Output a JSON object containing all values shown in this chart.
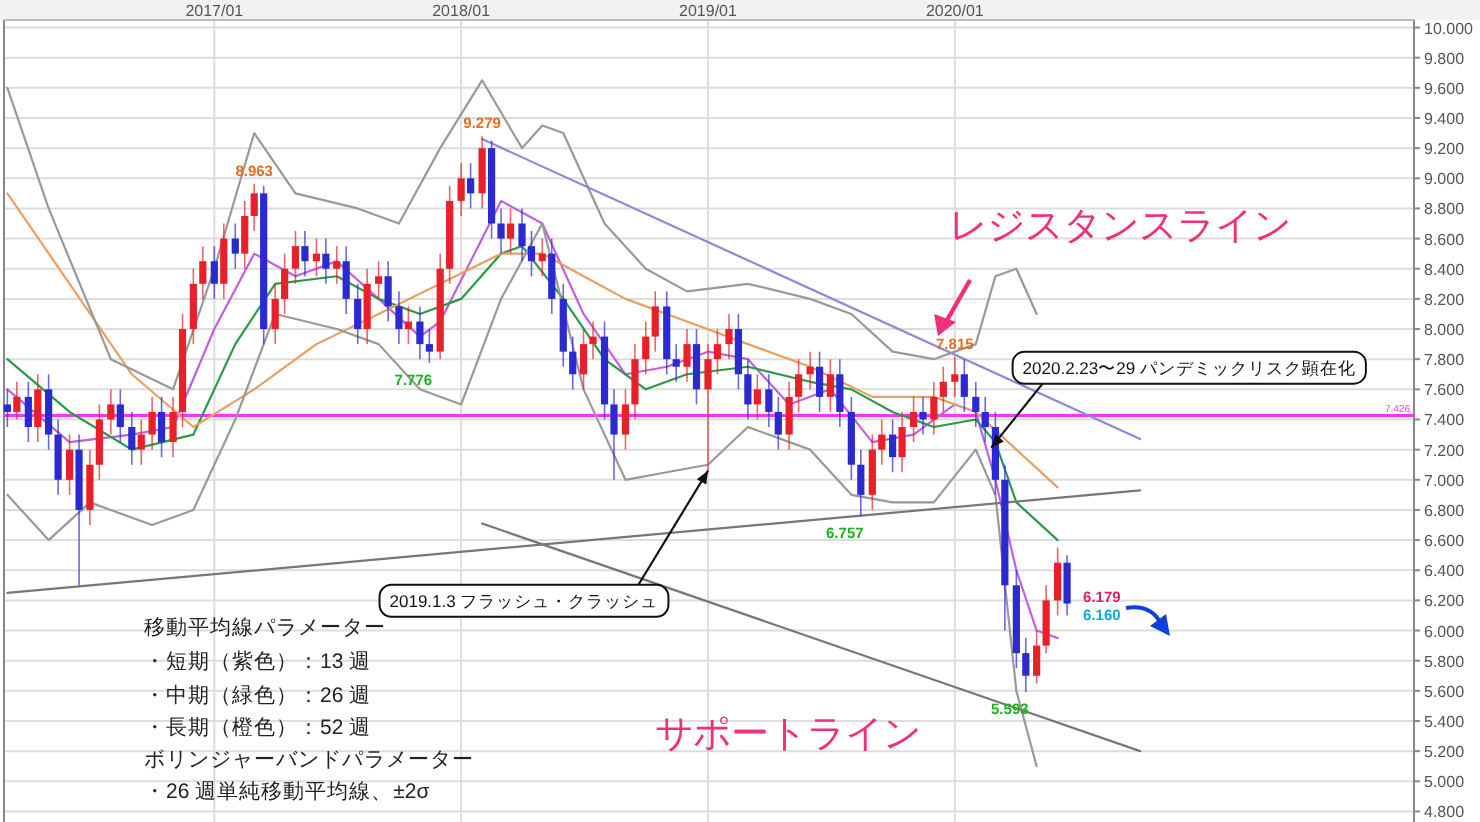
{
  "chart_data": {
    "type": "candlestick",
    "x": [
      "2016-03-01",
      "2016-03-15",
      "2016-04-01",
      "2016-04-15",
      "2016-05-01",
      "2016-05-15",
      "2016-06-01",
      "2016-06-15",
      "2016-07-01",
      "2016-07-15",
      "2016-08-01",
      "2016-08-15",
      "2016-09-01",
      "2016-09-15",
      "2016-10-01",
      "2016-10-15",
      "2016-11-01",
      "2016-11-15",
      "2016-12-01",
      "2016-12-15",
      "2017-01-01",
      "2017-01-15",
      "2017-02-01",
      "2017-02-15",
      "2017-03-01",
      "2017-03-15",
      "2017-04-01",
      "2017-04-15",
      "2017-05-01",
      "2017-05-15",
      "2017-06-01",
      "2017-06-15",
      "2017-07-01",
      "2017-07-15",
      "2017-08-01",
      "2017-08-15",
      "2017-09-01",
      "2017-09-15",
      "2017-10-01",
      "2017-10-15",
      "2017-11-01",
      "2017-11-15",
      "2017-12-01",
      "2017-12-15",
      "2018-01-01",
      "2018-01-15",
      "2018-02-01",
      "2018-02-15",
      "2018-03-01",
      "2018-03-15",
      "2018-04-01",
      "2018-04-15",
      "2018-05-01",
      "2018-05-15",
      "2018-06-01",
      "2018-06-15",
      "2018-07-01",
      "2018-07-15",
      "2018-08-01",
      "2018-08-15",
      "2018-09-01",
      "2018-09-15",
      "2018-10-01",
      "2018-10-15",
      "2018-11-01",
      "2018-11-15",
      "2018-12-01",
      "2018-12-15",
      "2019-01-01",
      "2019-01-15",
      "2019-02-01",
      "2019-02-15",
      "2019-03-01",
      "2019-03-15",
      "2019-04-01",
      "2019-04-15",
      "2019-05-01",
      "2019-05-15",
      "2019-06-01",
      "2019-06-15",
      "2019-07-01",
      "2019-07-15",
      "2019-08-01",
      "2019-08-15",
      "2019-09-01",
      "2019-09-15",
      "2019-10-01",
      "2019-10-15",
      "2019-11-01",
      "2019-11-15",
      "2019-12-01",
      "2019-12-15",
      "2020-01-01",
      "2020-01-15",
      "2020-02-01",
      "2020-02-15",
      "2020-03-01",
      "2020-03-15",
      "2020-04-01",
      "2020-04-15",
      "2020-05-01",
      "2020-05-15",
      "2020-06-01",
      "2020-06-15"
    ],
    "ohlc": [
      [
        7.5,
        7.6,
        7.35,
        7.45
      ],
      [
        7.45,
        7.65,
        7.4,
        7.55
      ],
      [
        7.55,
        7.65,
        7.25,
        7.35
      ],
      [
        7.35,
        7.7,
        7.25,
        7.6
      ],
      [
        7.6,
        7.7,
        7.2,
        7.3
      ],
      [
        7.3,
        7.4,
        6.9,
        7.0
      ],
      [
        7.0,
        7.3,
        6.9,
        7.2
      ],
      [
        7.2,
        7.3,
        6.3,
        6.8
      ],
      [
        6.8,
        7.2,
        6.7,
        7.1
      ],
      [
        7.1,
        7.5,
        7.0,
        7.4
      ],
      [
        7.4,
        7.6,
        7.3,
        7.5
      ],
      [
        7.5,
        7.6,
        7.25,
        7.35
      ],
      [
        7.35,
        7.45,
        7.1,
        7.2
      ],
      [
        7.2,
        7.4,
        7.1,
        7.3
      ],
      [
        7.3,
        7.55,
        7.2,
        7.45
      ],
      [
        7.45,
        7.55,
        7.15,
        7.25
      ],
      [
        7.25,
        7.55,
        7.15,
        7.45
      ],
      [
        7.45,
        8.1,
        7.35,
        8.0
      ],
      [
        8.0,
        8.4,
        7.9,
        8.3
      ],
      [
        8.3,
        8.55,
        8.2,
        8.45
      ],
      [
        8.45,
        8.55,
        8.2,
        8.3
      ],
      [
        8.3,
        8.7,
        8.2,
        8.6
      ],
      [
        8.6,
        8.7,
        8.4,
        8.5
      ],
      [
        8.5,
        8.85,
        8.4,
        8.75
      ],
      [
        8.75,
        8.963,
        8.65,
        8.9
      ],
      [
        8.9,
        8.95,
        7.9,
        8.0
      ],
      [
        8.0,
        8.3,
        7.9,
        8.2
      ],
      [
        8.2,
        8.5,
        8.1,
        8.4
      ],
      [
        8.4,
        8.65,
        8.3,
        8.55
      ],
      [
        8.55,
        8.65,
        8.35,
        8.45
      ],
      [
        8.45,
        8.6,
        8.35,
        8.5
      ],
      [
        8.5,
        8.6,
        8.3,
        8.4
      ],
      [
        8.4,
        8.55,
        8.3,
        8.45
      ],
      [
        8.45,
        8.55,
        8.1,
        8.2
      ],
      [
        8.2,
        8.3,
        7.9,
        8.0
      ],
      [
        8.0,
        8.4,
        7.9,
        8.3
      ],
      [
        8.3,
        8.45,
        8.2,
        8.35
      ],
      [
        8.35,
        8.45,
        8.05,
        8.15
      ],
      [
        8.15,
        8.25,
        7.9,
        8.0
      ],
      [
        8.0,
        8.15,
        7.9,
        8.05
      ],
      [
        8.05,
        8.15,
        7.8,
        7.9
      ],
      [
        7.9,
        8.0,
        7.776,
        7.85
      ],
      [
        7.85,
        8.5,
        7.8,
        8.4
      ],
      [
        8.4,
        8.95,
        8.3,
        8.85
      ],
      [
        8.85,
        9.1,
        8.75,
        9.0
      ],
      [
        9.0,
        9.1,
        8.8,
        8.9
      ],
      [
        8.9,
        9.279,
        8.8,
        9.2
      ],
      [
        9.2,
        9.25,
        8.6,
        8.7
      ],
      [
        8.7,
        8.8,
        8.5,
        8.6
      ],
      [
        8.6,
        8.8,
        8.5,
        8.7
      ],
      [
        8.7,
        8.8,
        8.45,
        8.55
      ],
      [
        8.55,
        8.65,
        8.35,
        8.45
      ],
      [
        8.45,
        8.6,
        8.35,
        8.5
      ],
      [
        8.5,
        8.6,
        8.1,
        8.2
      ],
      [
        8.2,
        8.3,
        7.75,
        7.85
      ],
      [
        7.85,
        7.95,
        7.6,
        7.7
      ],
      [
        7.7,
        8.0,
        7.6,
        7.9
      ],
      [
        7.9,
        8.05,
        7.8,
        7.95
      ],
      [
        7.95,
        8.05,
        7.4,
        7.5
      ],
      [
        7.5,
        7.6,
        7.0,
        7.3
      ],
      [
        7.3,
        7.6,
        7.2,
        7.5
      ],
      [
        7.5,
        7.9,
        7.4,
        7.8
      ],
      [
        7.8,
        8.05,
        7.7,
        7.95
      ],
      [
        7.95,
        8.25,
        7.85,
        8.15
      ],
      [
        8.15,
        8.25,
        7.7,
        7.8
      ],
      [
        7.8,
        7.9,
        7.65,
        7.75
      ],
      [
        7.75,
        8.0,
        7.65,
        7.9
      ],
      [
        7.9,
        8.0,
        7.5,
        7.6
      ],
      [
        7.6,
        7.9,
        7.05,
        7.8
      ],
      [
        7.8,
        8.0,
        7.7,
        7.9
      ],
      [
        7.9,
        8.1,
        7.8,
        8.0
      ],
      [
        8.0,
        8.1,
        7.6,
        7.7
      ],
      [
        7.7,
        7.8,
        7.4,
        7.5
      ],
      [
        7.5,
        7.7,
        7.4,
        7.6
      ],
      [
        7.6,
        7.7,
        7.35,
        7.45
      ],
      [
        7.45,
        7.55,
        7.2,
        7.3
      ],
      [
        7.3,
        7.65,
        7.2,
        7.55
      ],
      [
        7.55,
        7.8,
        7.45,
        7.7
      ],
      [
        7.7,
        7.85,
        7.6,
        7.75
      ],
      [
        7.75,
        7.85,
        7.45,
        7.55
      ],
      [
        7.55,
        7.8,
        7.45,
        7.7
      ],
      [
        7.7,
        7.8,
        7.35,
        7.45
      ],
      [
        7.45,
        7.55,
        7.0,
        7.1
      ],
      [
        7.1,
        7.2,
        6.757,
        6.9
      ],
      [
        6.9,
        7.3,
        6.8,
        7.2
      ],
      [
        7.2,
        7.4,
        7.1,
        7.3
      ],
      [
        7.3,
        7.4,
        7.05,
        7.15
      ],
      [
        7.15,
        7.45,
        7.05,
        7.35
      ],
      [
        7.35,
        7.55,
        7.25,
        7.45
      ],
      [
        7.45,
        7.55,
        7.3,
        7.4
      ],
      [
        7.4,
        7.65,
        7.3,
        7.55
      ],
      [
        7.55,
        7.75,
        7.45,
        7.65
      ],
      [
        7.65,
        7.815,
        7.55,
        7.7
      ],
      [
        7.7,
        7.8,
        7.45,
        7.55
      ],
      [
        7.55,
        7.65,
        7.35,
        7.45
      ],
      [
        7.45,
        7.55,
        7.25,
        7.35
      ],
      [
        7.35,
        7.45,
        6.9,
        7.0
      ],
      [
        7.0,
        7.1,
        6.0,
        6.3
      ],
      [
        6.3,
        6.4,
        5.75,
        5.85
      ],
      [
        5.85,
        5.95,
        5.593,
        5.7
      ],
      [
        5.7,
        6.0,
        5.65,
        5.9
      ],
      [
        5.9,
        6.3,
        5.85,
        6.2
      ],
      [
        6.2,
        6.55,
        6.1,
        6.45
      ],
      [
        6.45,
        6.5,
        6.1,
        6.179
      ]
    ],
    "colors": [
      "#2a2ad0",
      "#e8202a",
      "#2a2ad0",
      "#e8202a",
      "#2a2ad0",
      "#2a2ad0",
      "#e8202a",
      "#2a2ad0",
      "#e8202a",
      "#e8202a",
      "#e8202a",
      "#2a2ad0",
      "#2a2ad0",
      "#e8202a",
      "#e8202a",
      "#2a2ad0",
      "#e8202a",
      "#e8202a",
      "#e8202a",
      "#e8202a",
      "#2a2ad0",
      "#e8202a",
      "#2a2ad0",
      "#e8202a",
      "#e8202a",
      "#2a2ad0",
      "#e8202a",
      "#e8202a",
      "#e8202a",
      "#2a2ad0",
      "#e8202a",
      "#2a2ad0",
      "#e8202a",
      "#2a2ad0",
      "#2a2ad0",
      "#e8202a",
      "#e8202a",
      "#2a2ad0",
      "#2a2ad0",
      "#e8202a",
      "#2a2ad0",
      "#2a2ad0",
      "#e8202a",
      "#e8202a",
      "#e8202a",
      "#2a2ad0",
      "#e8202a",
      "#2a2ad0",
      "#2a2ad0",
      "#e8202a",
      "#2a2ad0",
      "#2a2ad0",
      "#e8202a",
      "#2a2ad0",
      "#2a2ad0",
      "#2a2ad0",
      "#e8202a",
      "#e8202a",
      "#2a2ad0",
      "#2a2ad0",
      "#e8202a",
      "#e8202a",
      "#e8202a",
      "#e8202a",
      "#2a2ad0",
      "#2a2ad0",
      "#e8202a",
      "#2a2ad0",
      "#e8202a",
      "#e8202a",
      "#e8202a",
      "#2a2ad0",
      "#2a2ad0",
      "#e8202a",
      "#2a2ad0",
      "#2a2ad0",
      "#e8202a",
      "#e8202a",
      "#e8202a",
      "#2a2ad0",
      "#e8202a",
      "#2a2ad0",
      "#2a2ad0",
      "#2a2ad0",
      "#e8202a",
      "#e8202a",
      "#2a2ad0",
      "#e8202a",
      "#e8202a",
      "#2a2ad0",
      "#e8202a",
      "#e8202a",
      "#e8202a",
      "#2a2ad0",
      "#2a2ad0",
      "#2a2ad0",
      "#2a2ad0",
      "#2a2ad0",
      "#2a2ad0",
      "#2a2ad0",
      "#e8202a",
      "#e8202a",
      "#e8202a",
      "#2a2ad0"
    ],
    "series": [
      {
        "type": "line",
        "color": "#c060e0",
        "x": [
          "2016-03-01",
          "2016-06-01",
          "2016-09-01",
          "2016-11-01",
          "2017-01-01",
          "2017-03-01",
          "2017-05-01",
          "2017-07-01",
          "2017-09-01",
          "2017-11-01",
          "2017-12-01",
          "2018-02-01",
          "2018-03-01",
          "2018-05-01",
          "2018-07-01",
          "2018-09-01",
          "2018-11-01",
          "2019-01-01",
          "2019-03-01",
          "2019-05-01",
          "2019-07-01",
          "2019-09-01",
          "2019-11-01",
          "2020-01-01",
          "2020-02-01",
          "2020-03-01",
          "2020-04-01",
          "2020-05-01",
          "2020-06-01"
        ],
        "values": [
          7.6,
          7.25,
          7.3,
          7.35,
          8.0,
          8.5,
          8.35,
          8.45,
          8.2,
          7.95,
          8.05,
          8.6,
          8.85,
          8.7,
          8.1,
          7.7,
          7.75,
          7.85,
          7.8,
          7.5,
          7.6,
          7.25,
          7.3,
          7.5,
          7.45,
          7.0,
          6.4,
          6.0,
          5.95
        ]
      },
      {
        "type": "line",
        "color": "#2a9a4a",
        "x": [
          "2016-03-01",
          "2016-06-01",
          "2016-09-01",
          "2016-12-01",
          "2017-02-01",
          "2017-04-01",
          "2017-07-01",
          "2017-09-01",
          "2017-11-01",
          "2018-01-01",
          "2018-03-01",
          "2018-04-01",
          "2018-06-01",
          "2018-08-01",
          "2018-10-01",
          "2018-12-01",
          "2019-03-01",
          "2019-06-01",
          "2019-08-01",
          "2019-10-01",
          "2019-12-01",
          "2020-02-01",
          "2020-03-01",
          "2020-04-01",
          "2020-06-01"
        ],
        "values": [
          7.8,
          7.45,
          7.2,
          7.3,
          7.9,
          8.3,
          8.35,
          8.2,
          8.1,
          8.2,
          8.5,
          8.55,
          8.2,
          7.8,
          7.6,
          7.7,
          7.75,
          7.65,
          7.6,
          7.45,
          7.35,
          7.4,
          7.25,
          6.85,
          6.6
        ]
      },
      {
        "type": "line",
        "color": "#e8a060",
        "x": [
          "2016-03-01",
          "2016-06-01",
          "2016-09-01",
          "2016-12-01",
          "2017-03-01",
          "2017-06-01",
          "2017-09-01",
          "2017-12-01",
          "2018-03-01",
          "2018-05-01",
          "2018-07-01",
          "2018-09-01",
          "2018-12-01",
          "2019-03-01",
          "2019-06-01",
          "2019-09-01",
          "2019-12-01",
          "2020-02-01",
          "2020-04-01",
          "2020-06-01"
        ],
        "values": [
          8.9,
          8.3,
          7.7,
          7.35,
          7.6,
          7.9,
          8.1,
          8.3,
          8.5,
          8.5,
          8.35,
          8.2,
          8.05,
          7.9,
          7.75,
          7.55,
          7.55,
          7.45,
          7.2,
          6.95
        ]
      },
      {
        "type": "line",
        "color": "#999999",
        "x": [
          "2016-03-01",
          "2016-05-01",
          "2016-08-01",
          "2016-11-01",
          "2017-01-01",
          "2017-03-01",
          "2017-05-01",
          "2017-08-01",
          "2017-10-01",
          "2017-12-01",
          "2018-02-01",
          "2018-04-01",
          "2018-05-01",
          "2018-06-01",
          "2018-08-01",
          "2018-10-01",
          "2018-12-01",
          "2019-03-01",
          "2019-06-01",
          "2019-08-01",
          "2019-10-01",
          "2019-12-01",
          "2020-02-01",
          "2020-03-01",
          "2020-04-01",
          "2020-05-01"
        ],
        "values": [
          9.6,
          8.8,
          7.8,
          7.6,
          8.4,
          9.3,
          8.9,
          8.8,
          8.7,
          9.2,
          9.65,
          9.2,
          9.35,
          9.3,
          8.7,
          8.4,
          8.25,
          8.3,
          8.2,
          8.1,
          7.85,
          7.8,
          7.9,
          8.35,
          8.4,
          8.1
        ]
      },
      {
        "type": "line",
        "color": "#999999",
        "x": [
          "2016-03-01",
          "2016-05-01",
          "2016-07-01",
          "2016-10-01",
          "2016-12-01",
          "2017-02-01",
          "2017-04-01",
          "2017-07-01",
          "2017-09-01",
          "2017-11-01",
          "2018-01-01",
          "2018-03-01",
          "2018-05-01",
          "2018-07-01",
          "2018-09-01",
          "2018-11-01",
          "2019-01-01",
          "2019-03-01",
          "2019-06-01",
          "2019-08-01",
          "2019-10-01",
          "2019-12-01",
          "2020-02-01",
          "2020-03-01",
          "2020-04-01",
          "2020-05-01"
        ],
        "values": [
          6.9,
          6.6,
          6.85,
          6.7,
          6.8,
          7.4,
          8.1,
          8.0,
          7.9,
          7.6,
          7.5,
          8.2,
          8.7,
          7.6,
          7.0,
          7.05,
          7.1,
          7.35,
          7.2,
          6.9,
          6.85,
          6.85,
          7.2,
          6.9,
          5.6,
          5.1
        ]
      },
      {
        "type": "line",
        "color": "#8a8ad8",
        "x": [
          "2018-02-01",
          "2020-10-01"
        ],
        "values": [
          9.26,
          7.27
        ]
      },
      {
        "type": "line",
        "color": "#777777",
        "x": [
          "2016-03-01",
          "2020-10-01"
        ],
        "values": [
          6.25,
          6.93
        ]
      },
      {
        "type": "line",
        "color": "#777777",
        "x": [
          "2018-02-01",
          "2020-10-01"
        ],
        "values": [
          6.71,
          5.2
        ]
      }
    ],
    "xlim": [
      "2016-02-25",
      "2021-11-10"
    ],
    "xticks": [
      {
        "value": "2017-01-01",
        "label": "2017/01"
      },
      {
        "value": "2018-01-01",
        "label": "2018/01"
      },
      {
        "value": "2019-01-01",
        "label": "2019/01"
      },
      {
        "value": "2020-01-01",
        "label": "2020/01"
      }
    ],
    "ylim": [
      4.73,
      10.05
    ],
    "yticks": [
      {
        "value": 4.8,
        "label": "4.800"
      },
      {
        "value": 5.0,
        "label": "5.000"
      },
      {
        "value": 5.2,
        "label": "5.200"
      },
      {
        "value": 5.4,
        "label": "5.400"
      },
      {
        "value": 5.6,
        "label": "5.600"
      },
      {
        "value": 5.8,
        "label": "5.800"
      },
      {
        "value": 6.0,
        "label": "6.000"
      },
      {
        "value": 6.2,
        "label": "6.200"
      },
      {
        "value": 6.4,
        "label": "6.400"
      },
      {
        "value": 6.6,
        "label": "6.600"
      },
      {
        "value": 6.8,
        "label": "6.800"
      },
      {
        "value": 7.0,
        "label": "7.000"
      },
      {
        "value": 7.2,
        "label": "7.200"
      },
      {
        "value": 7.4,
        "label": "7.400"
      },
      {
        "value": 7.6,
        "label": "7.600"
      },
      {
        "value": 7.8,
        "label": "7.800"
      },
      {
        "value": 8.0,
        "label": "8.000"
      },
      {
        "value": 8.2,
        "label": "8.200"
      },
      {
        "value": 8.4,
        "label": "8.400"
      },
      {
        "value": 8.6,
        "label": "8.600"
      },
      {
        "value": 8.8,
        "label": "8.800"
      },
      {
        "value": 9.0,
        "label": "9.000"
      },
      {
        "value": 9.2,
        "label": "9.200"
      },
      {
        "value": 9.4,
        "label": "9.400"
      },
      {
        "value": 9.6,
        "label": "9.600"
      },
      {
        "value": 9.8,
        "label": "9.800"
      },
      {
        "value": 10.0,
        "label": "10.000"
      }
    ],
    "grid": true,
    "ref_lines": [
      {
        "axis": "y",
        "value": 7.426,
        "label": "7.426",
        "color": "#ff33ff"
      }
    ],
    "annotations": [
      {
        "text": "9.279",
        "x": "2018-02-01",
        "y": 9.279
      },
      {
        "text": "8.963",
        "x": "2017-03-01",
        "y": 8.963
      },
      {
        "text": "7.776",
        "x": "2017-11-15",
        "y": 7.776
      },
      {
        "text": "6.757",
        "x": "2019-08-15",
        "y": 6.757
      },
      {
        "text": "7.815",
        "x": "2020-01-01",
        "y": 7.815
      },
      {
        "text": "5.593",
        "x": "2020-04-15",
        "y": 5.593
      },
      {
        "text": "6.179",
        "x": "2020-06-15",
        "y": 6.179
      },
      {
        "text": "6.160",
        "x": "2020-06-15",
        "y": 6.16
      },
      {
        "text": "2020.2.23〜29 パンデミックリスク顕在化",
        "x": "2020-02-15",
        "y": 7.2
      },
      {
        "text": "2019.1.3 フラッシュ・クラッシュ",
        "x": "2019-01-01",
        "y": 7.1
      },
      "レジスタンスライン",
      "サポートライン",
      "移動平均線パラメーター",
      "・短期（紫色）：13 週",
      "・中期（緑色）：26 週",
      "・長期（橙色）：52 週",
      "ボリンジャーバンドパラメーター",
      "・26 週単純移動平均線、±2σ"
    ]
  }
}
